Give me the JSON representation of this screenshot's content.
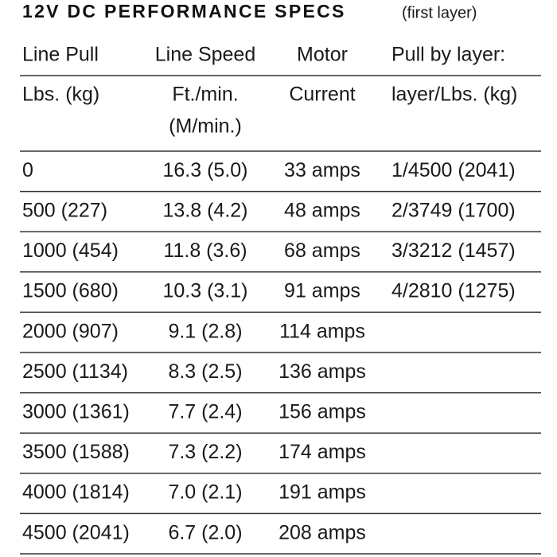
{
  "title": "12V DC PERFORMANCE SPECS",
  "subtitle": "(first layer)",
  "table": {
    "header": [
      [
        "Line Pull",
        "Lbs. (kg)"
      ],
      [
        "Line Speed",
        "Ft./min.",
        "(M/min.)"
      ],
      [
        "Motor",
        "Current"
      ],
      [
        "Pull by layer:",
        "layer/Lbs. (kg)"
      ]
    ],
    "rows": [
      [
        "0",
        "16.3 (5.0)",
        "33 amps",
        "1/4500 (2041)"
      ],
      [
        "500 (227)",
        "13.8 (4.2)",
        "48 amps",
        "2/3749 (1700)"
      ],
      [
        "1000 (454)",
        "11.8 (3.6)",
        "68 amps",
        "3/3212 (1457)"
      ],
      [
        "1500 (680)",
        "10.3 (3.1)",
        "91 amps",
        "4/2810 (1275)"
      ],
      [
        "2000 (907)",
        "9.1 (2.8)",
        "114 amps"
      ],
      [
        "2500 (1134)",
        "8.3 (2.5)",
        "136 amps"
      ],
      [
        "3000 (1361)",
        "7.7 (2.4)",
        "156 amps"
      ],
      [
        "3500 (1588)",
        "7.3 (2.2)",
        "174 amps"
      ],
      [
        "4000 (1814)",
        "7.0 (2.1)",
        "191 amps"
      ],
      [
        "4500 (2041)",
        "6.7 (2.0)",
        "208 amps"
      ]
    ]
  }
}
